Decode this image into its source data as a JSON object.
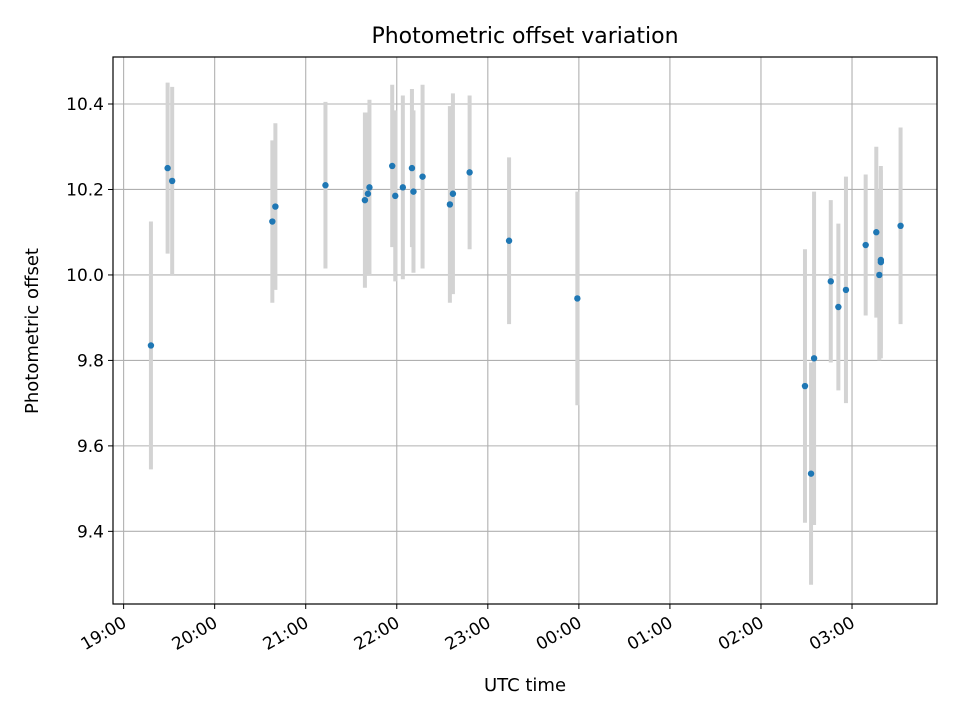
{
  "chart_data": {
    "type": "scatter",
    "title": "Photometric offset variation",
    "xlabel": "UTC time",
    "ylabel": "Photometric offset",
    "x_ticks": [
      "19:00",
      "20:00",
      "21:00",
      "22:00",
      "23:00",
      "00:00",
      "01:00",
      "02:00",
      "03:00"
    ],
    "y_ticks": [
      "9.4",
      "9.6",
      "9.8",
      "10.0",
      "10.2",
      "10.4"
    ],
    "xlim": [
      "18:53",
      "03:56"
    ],
    "ylim": [
      9.23,
      10.51
    ],
    "grid": true,
    "errorbar_color": "#d3d3d3",
    "point_color": "#1f77b4",
    "points": [
      {
        "time": "19:18",
        "y": 9.835,
        "err": 0.29
      },
      {
        "time": "19:29",
        "y": 10.25,
        "err": 0.2
      },
      {
        "time": "19:32",
        "y": 10.22,
        "err": 0.22
      },
      {
        "time": "20:38",
        "y": 10.125,
        "err": 0.19
      },
      {
        "time": "20:40",
        "y": 10.16,
        "err": 0.195
      },
      {
        "time": "21:13",
        "y": 10.21,
        "err": 0.195
      },
      {
        "time": "21:39",
        "y": 10.175,
        "err": 0.205
      },
      {
        "time": "21:41",
        "y": 10.19,
        "err": 0.19
      },
      {
        "time": "21:42",
        "y": 10.205,
        "err": 0.205
      },
      {
        "time": "21:57",
        "y": 10.255,
        "err": 0.19
      },
      {
        "time": "21:59",
        "y": 10.185,
        "err": 0.2
      },
      {
        "time": "22:04",
        "y": 10.205,
        "err": 0.215
      },
      {
        "time": "22:10",
        "y": 10.25,
        "err": 0.185
      },
      {
        "time": "22:11",
        "y": 10.195,
        "err": 0.19
      },
      {
        "time": "22:17",
        "y": 10.23,
        "err": 0.215
      },
      {
        "time": "22:35",
        "y": 10.165,
        "err": 0.23
      },
      {
        "time": "22:37",
        "y": 10.19,
        "err": 0.235
      },
      {
        "time": "22:48",
        "y": 10.24,
        "err": 0.18
      },
      {
        "time": "23:14",
        "y": 10.08,
        "err": 0.195
      },
      {
        "time": "23:59",
        "y": 9.945,
        "err": 0.25
      },
      {
        "time": "02:29",
        "y": 9.74,
        "err": 0.32
      },
      {
        "time": "02:33",
        "y": 9.535,
        "err": 0.26
      },
      {
        "time": "02:35",
        "y": 9.805,
        "err": 0.39
      },
      {
        "time": "02:46",
        "y": 9.985,
        "err": 0.19
      },
      {
        "time": "02:51",
        "y": 9.925,
        "err": 0.195
      },
      {
        "time": "02:56",
        "y": 9.965,
        "err": 0.265
      },
      {
        "time": "03:09",
        "y": 10.07,
        "err": 0.165
      },
      {
        "time": "03:16",
        "y": 10.1,
        "err": 0.2
      },
      {
        "time": "03:18",
        "y": 10.0,
        "err": 0.2
      },
      {
        "time": "03:19",
        "y": 10.03,
        "err": 0.225
      },
      {
        "time": "03:19",
        "y": 10.035,
        "err": 0.21
      },
      {
        "time": "03:32",
        "y": 10.115,
        "err": 0.23
      }
    ]
  }
}
